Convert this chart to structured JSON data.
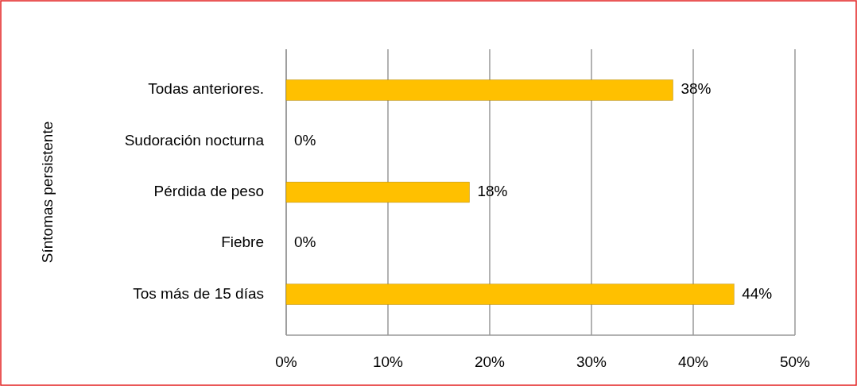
{
  "chart_data": {
    "type": "bar",
    "orientation": "horizontal",
    "ylabel": "Síntomas persistente",
    "categories": [
      "Todas anteriores.",
      "Sudoración nocturna",
      "Pérdida de peso",
      "Fiebre",
      "Tos más de 15 días"
    ],
    "values": [
      38,
      0,
      18,
      0,
      44
    ],
    "color": "#ffc000",
    "value_labels": [
      "38%",
      "0%",
      "18%",
      "0%",
      "44%"
    ],
    "xlim": [
      0,
      50
    ],
    "xticks": [
      {
        "value": 0,
        "label": "0%"
      },
      {
        "value": 10,
        "label": "10%"
      },
      {
        "value": 20,
        "label": "20%"
      },
      {
        "value": 30,
        "label": "30%"
      },
      {
        "value": 40,
        "label": "40%"
      },
      {
        "value": 50,
        "label": "50%"
      }
    ],
    "grid": "x"
  }
}
